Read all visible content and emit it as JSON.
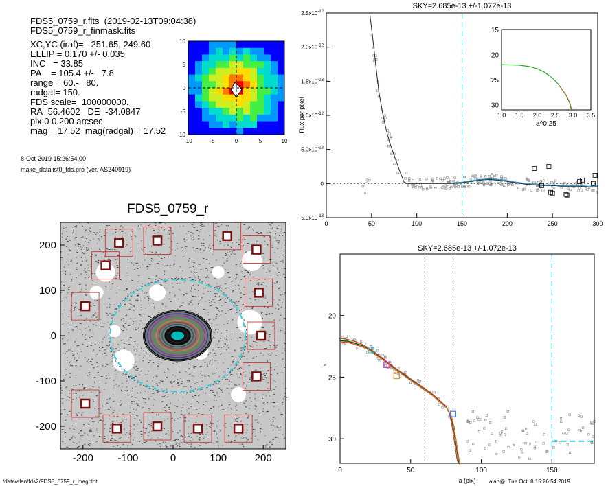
{
  "info": {
    "lines": [
      "FDS5_0759_r.fits  (2019-02-13T09:04:38)",
      "FDS5_0759_r_finmask.fits",
      "XC,YC (iraf)=   251.65, 249.60",
      "ELLIP = 0.170 +/- 0.035",
      "INC   = 33.85",
      "PA    = 105.4 +/-   7.8",
      "range=  60.-   80.",
      "radgal= 150.",
      "FDS scale=  100000000.",
      "RA=56.4602   DE=-34.0847",
      "pix 0 0.200 arcsec",
      "mag=  17.52  mag(radgal)=  17.52"
    ],
    "date": "8-Oct-2019 15:26:54.00",
    "program": "make_datalist0_fds.pro (ver. AS240919)"
  },
  "footer": {
    "path": "/data/alan/fds2/FDS5_0759_r_magplot",
    "stamp": "alan@  Tue Oct  8 15:26:54 2019"
  },
  "colors": {
    "cyan": "#33ccdd",
    "square_red": "#cc2222",
    "square_dark": "#7a1010",
    "grey_points": "#888888"
  },
  "chart_data": [
    {
      "id": "thumb",
      "type": "heatmap",
      "xlim": [
        -10,
        10
      ],
      "ylim": [
        -10,
        10
      ],
      "xticks": [
        "-10",
        "-5",
        "0",
        "5",
        "10"
      ],
      "yticks": [
        "10",
        "5",
        "0",
        "-5",
        "-10"
      ]
    },
    {
      "id": "image",
      "type": "scatter",
      "title": "FDS5_0759_r",
      "xlim": [
        -250,
        250
      ],
      "ylim": [
        -250,
        250
      ],
      "xticks": [
        "-200",
        "-100",
        "0",
        "100",
        "200"
      ],
      "yticks": [
        "200",
        "100",
        "0",
        "-100",
        "-200"
      ],
      "ellipse": {
        "a": 150,
        "b": 124.5,
        "pa_deg": 105.4
      },
      "masked_sources": [
        {
          "x": -120,
          "y": 205
        },
        {
          "x": -35,
          "y": 210
        },
        {
          "x": 120,
          "y": 220
        },
        {
          "x": 185,
          "y": 190
        },
        {
          "x": -150,
          "y": 155
        },
        {
          "x": 190,
          "y": 95
        },
        {
          "x": -195,
          "y": 65
        },
        {
          "x": 195,
          "y": 0
        },
        {
          "x": 185,
          "y": -90
        },
        {
          "x": -195,
          "y": -150
        },
        {
          "x": -125,
          "y": -205
        },
        {
          "x": -35,
          "y": -200
        },
        {
          "x": 55,
          "y": -205
        },
        {
          "x": 145,
          "y": -205
        }
      ]
    },
    {
      "id": "sky",
      "type": "line",
      "title": "SKY=2.685e-13 +/-1.072e-13",
      "ylabel": "Flux per pixel",
      "xlim": [
        0,
        300
      ],
      "ylim": [
        -5e-13,
        2.5e-12
      ],
      "xticks": [
        "0",
        "50",
        "100",
        "150",
        "200",
        "250",
        "300"
      ],
      "yticks": [
        "-5.0x10^-13",
        "0",
        "5.0x10^-13",
        "1.0x10^-12",
        "1.5x10^-12",
        "2.0x10^-12",
        "2.5x10^-12"
      ],
      "sky_level": 0,
      "radgal_line": 150,
      "profile": {
        "x": [
          48,
          52,
          55,
          58,
          62,
          66,
          70,
          74,
          78,
          82,
          86,
          90,
          100,
          110,
          120,
          130,
          140,
          150,
          160,
          170,
          180,
          190,
          200,
          210,
          220,
          230,
          240,
          250,
          260,
          270,
          280,
          290,
          300
        ],
        "y": [
          2.5e-12,
          2.05e-12,
          1.7e-12,
          1.35e-12,
          1.05e-12,
          8e-13,
          6e-13,
          4.5e-13,
          3e-13,
          1.5e-13,
          2e-14,
          0.0,
          0.0,
          0.0,
          0.0,
          0.0,
          0.0,
          1e-14,
          3e-14,
          5e-14,
          6e-14,
          5e-14,
          3e-14,
          1e-14,
          -1e-14,
          -2e-14,
          -3e-14,
          -3e-14,
          -4e-14,
          -4e-14,
          -4e-14,
          -5e-14,
          -5e-14
        ]
      },
      "boxes": [
        {
          "x": 230,
          "y": 2.2e-13
        },
        {
          "x": 238,
          "y": -3e-14
        },
        {
          "x": 246,
          "y": 2.5e-13
        },
        {
          "x": 248,
          "y": -1.3e-13
        },
        {
          "x": 250,
          "y": -1.4e-13
        },
        {
          "x": 265,
          "y": -1.6e-13
        },
        {
          "x": 266,
          "y": -1.7e-13
        },
        {
          "x": 280,
          "y": 3e-14
        },
        {
          "x": 283,
          "y": 5e-14
        },
        {
          "x": 295,
          "y": 0.0
        },
        {
          "x": 297,
          "y": 1.2e-13
        }
      ],
      "inset": {
        "xlabel": "a^0.25",
        "xlim": [
          1.0,
          3.5
        ],
        "ylim": [
          15,
          31
        ],
        "xticks": [
          "1.0",
          "1.5",
          "2.0",
          "2.5",
          "3.0",
          "3.5"
        ],
        "yticks": [
          "15",
          "20",
          "25",
          "30"
        ],
        "profile": {
          "x": [
            1.0,
            1.5,
            1.8,
            2.0,
            2.2,
            2.4,
            2.5,
            2.6,
            2.7,
            2.8,
            2.9,
            2.95
          ],
          "y": [
            22.0,
            22.1,
            22.4,
            22.8,
            23.5,
            24.5,
            25.2,
            26.0,
            27.0,
            28.0,
            29.5,
            31.0
          ]
        }
      }
    },
    {
      "id": "profile",
      "type": "line",
      "title": "SKY=2.685e-13 +/-1.072e-13",
      "xlabel": "a (pix)",
      "ylabel": "μ",
      "xlim": [
        0,
        180
      ],
      "ylim": [
        32,
        15
      ],
      "xticks": [
        "0",
        "50",
        "100",
        "150"
      ],
      "yticks": [
        "20",
        "25",
        "30"
      ],
      "range_lines": [
        60,
        80
      ],
      "radgal_line": 150,
      "profile": {
        "x": [
          0,
          5,
          10,
          15,
          20,
          25,
          30,
          35,
          40,
          45,
          50,
          55,
          60,
          65,
          70,
          75,
          78,
          80,
          82,
          84
        ],
        "y": [
          22.0,
          22.05,
          22.2,
          22.4,
          22.7,
          23.1,
          23.5,
          24.0,
          24.4,
          24.8,
          25.2,
          25.6,
          26.0,
          26.4,
          26.9,
          27.4,
          28.0,
          29.0,
          30.5,
          32.0
        ]
      },
      "markers": [
        {
          "x": 22,
          "y": 22.8,
          "color": "#33ccdd"
        },
        {
          "x": 33,
          "y": 24.0,
          "color": "#cc33cc"
        },
        {
          "x": 40,
          "y": 24.9,
          "color": "#dd9933"
        },
        {
          "x": 80,
          "y": 28.0,
          "color": "#3388dd"
        }
      ],
      "sky_level": 30.2
    }
  ]
}
